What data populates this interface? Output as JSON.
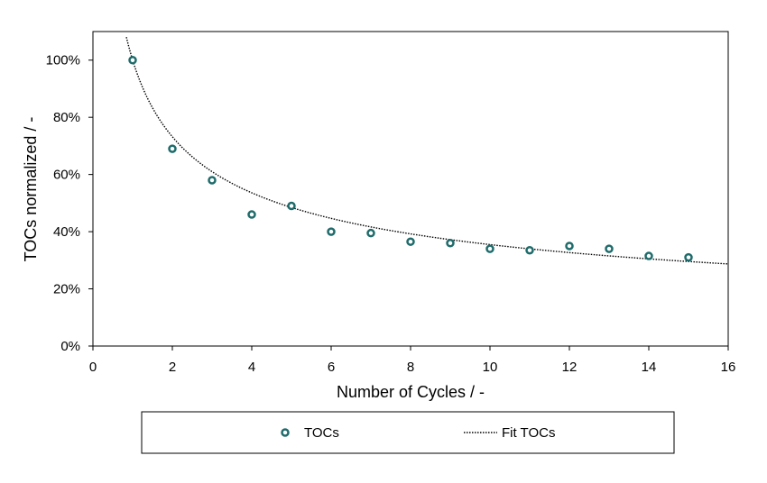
{
  "chart_data": {
    "type": "scatter",
    "xlabel": "Number of Cycles / -",
    "ylabel": "TOCs normalized / -",
    "xlim": [
      0,
      16
    ],
    "ylim": [
      0,
      1.1
    ],
    "x_ticks": [
      0,
      2,
      4,
      6,
      8,
      10,
      12,
      14,
      16
    ],
    "y_ticks": [
      0,
      0.2,
      0.4,
      0.6,
      0.8,
      1.0
    ],
    "x_tick_labels": [
      "0",
      "2",
      "4",
      "6",
      "8",
      "10",
      "12",
      "14",
      "16"
    ],
    "y_tick_labels": [
      "0%",
      "20%",
      "40%",
      "60%",
      "80%",
      "100%"
    ],
    "grid": false,
    "legend_position": "bottom",
    "series": [
      {
        "name": "TOCs",
        "style": "markers",
        "marker": "open-circle",
        "color": "#1f6b6b",
        "x": [
          1,
          2,
          3,
          4,
          5,
          6,
          7,
          8,
          9,
          10,
          11,
          12,
          13,
          14,
          15
        ],
        "y": [
          1.0,
          0.69,
          0.58,
          0.46,
          0.49,
          0.4,
          0.395,
          0.365,
          0.36,
          0.34,
          0.335,
          0.35,
          0.34,
          0.315,
          0.31
        ]
      },
      {
        "name": "Fit TOCs",
        "style": "dotted-line",
        "color": "#000000",
        "fit": "power",
        "coefficient": 1.0,
        "exponent": -0.45,
        "x_range": [
          0.65,
          16
        ]
      }
    ]
  }
}
